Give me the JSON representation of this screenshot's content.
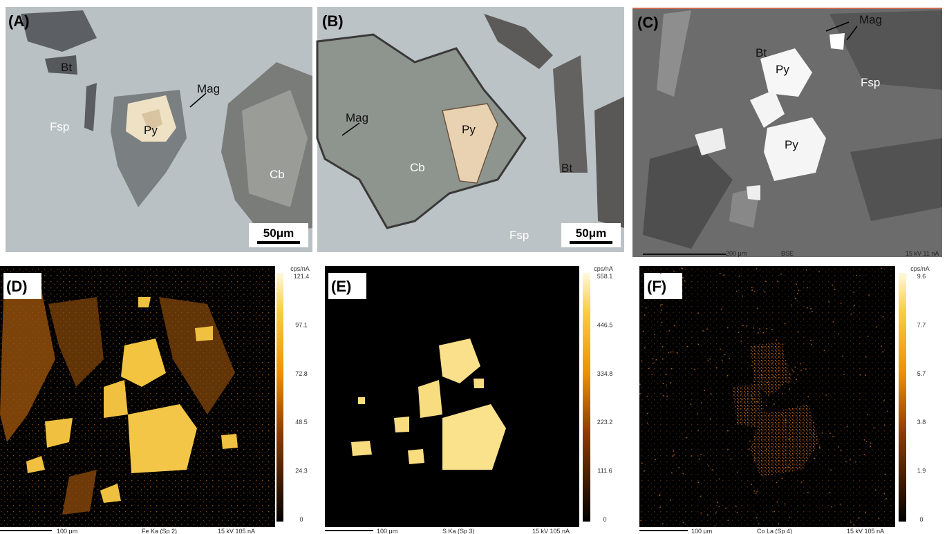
{
  "panels": [
    {
      "label": "(A)",
      "annotations": [
        "Bt",
        "Mag",
        "Fsp",
        "Py",
        "Cb"
      ],
      "scale_bar": "50μm"
    },
    {
      "label": "(B)",
      "annotations": [
        "Mag",
        "Py",
        "Cb",
        "Bt",
        "Fsp"
      ],
      "scale_bar": "50μm"
    },
    {
      "label": "(C)",
      "annotations": [
        "Mag",
        "Bt",
        "Py",
        "Fsp",
        "Py"
      ],
      "footer": [
        "200 μm",
        "BSE",
        "15 kV 11 nA"
      ]
    },
    {
      "label": "(D)",
      "colorbar": {
        "unit": "cps/nA",
        "ticks": [
          121.4,
          97.1,
          72.8,
          48.5,
          24.3,
          0
        ]
      },
      "footer": [
        "100 μm",
        "Fe Ka (Sp 2)",
        "15 kV 105 nA"
      ]
    },
    {
      "label": "(E)",
      "colorbar": {
        "unit": "cps/nA",
        "ticks": [
          558.1,
          446.5,
          334.8,
          223.2,
          111.6,
          0
        ]
      },
      "footer": [
        "100 μm",
        "S  Ka (Sp 3)",
        "15 kV 105 nA"
      ]
    },
    {
      "label": "(F)",
      "colorbar": {
        "unit": "cps/nA",
        "ticks": [
          9.6,
          7.7,
          5.7,
          3.8,
          1.9,
          0
        ]
      },
      "footer": [
        "100 μm",
        "Co La (Sp 4)",
        "15 kV 105 nA"
      ]
    }
  ]
}
